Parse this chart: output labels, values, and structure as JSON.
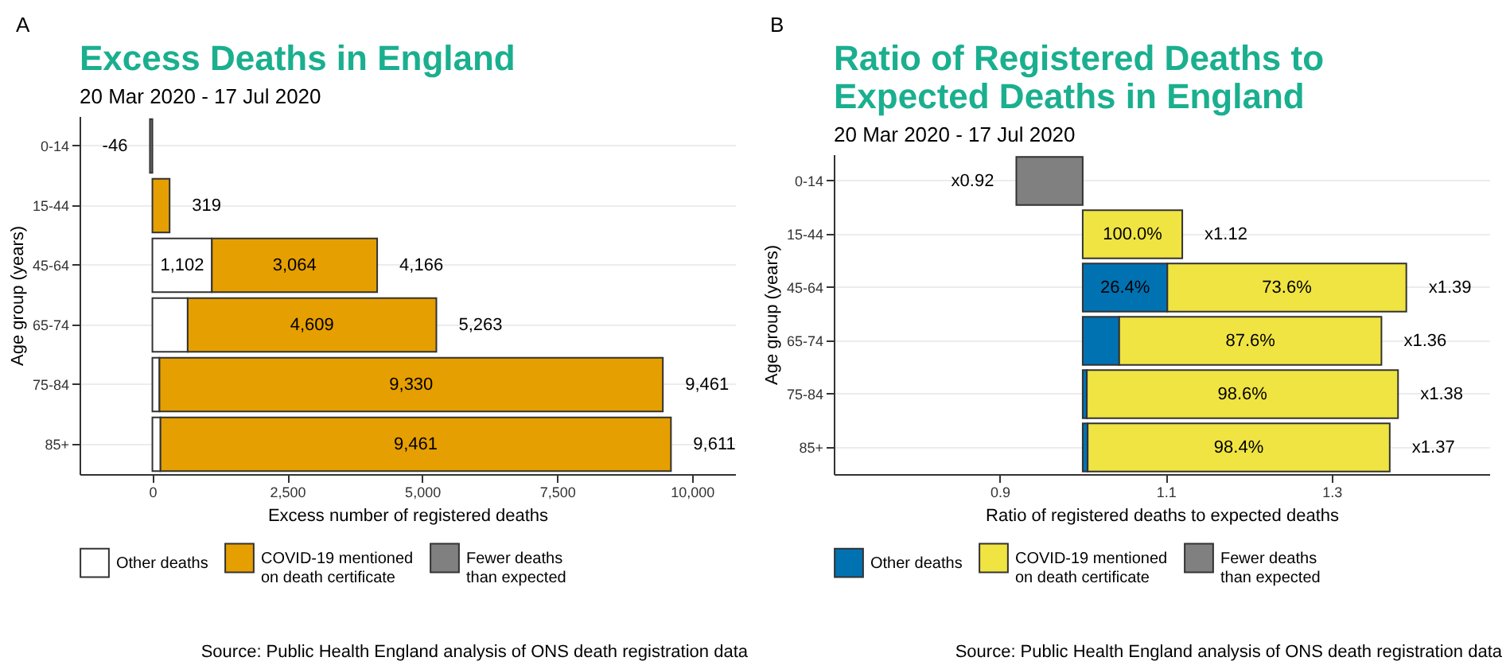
{
  "chart_data": [
    {
      "type": "bar",
      "title": "Excess Deaths in England",
      "subtitle": "20 Mar 2020 - 17 Jul 2020",
      "xlabel": "Excess number of registered deaths",
      "ylabel": "Age group (years)",
      "annotations": [
        "A",
        "Source: Public Health England analysis of ONS death registration data"
      ],
      "categories": [
        "0-14",
        "15-44",
        "45-64",
        "65-74",
        "75-84",
        "85+"
      ],
      "orientation": "horizontal",
      "stacked": true,
      "series": [
        {
          "name": "Other deaths",
          "color": "#ffffff",
          "values": [
            null,
            null,
            1102,
            654,
            131,
            150
          ],
          "value_labels": [
            null,
            null,
            "1,102",
            null,
            null,
            null
          ]
        },
        {
          "name": "COVID-19 mentioned\non death certificate",
          "color": "#e69f00",
          "values": [
            null,
            319,
            3064,
            4609,
            9330,
            9461
          ],
          "value_labels": [
            null,
            null,
            "3,064",
            "4,609",
            "9,330",
            "9,461"
          ]
        },
        {
          "name": "Fewer deaths\nthan expected",
          "color": "#808080",
          "values": [
            -46,
            null,
            null,
            null,
            null,
            null
          ]
        }
      ],
      "totals": [
        "-46",
        "319",
        "4,166",
        "5,263",
        "9,461",
        "9,611"
      ],
      "xlim": [
        -1350,
        10800
      ],
      "xticks": [
        0,
        {
          "value": 2500,
          "label": "2,500"
        },
        {
          "value": 5000,
          "label": "5,000"
        },
        {
          "value": 7500,
          "label": "7,500"
        },
        {
          "value": 10000,
          "label": "10,000"
        }
      ],
      "grid": "y",
      "legend": "bottom"
    },
    {
      "type": "bar",
      "title": "Ratio of Registered Deaths to\nExpected Deaths in England",
      "subtitle": "20 Mar 2020 - 17 Jul 2020",
      "xlabel": "Ratio of registered deaths to expected deaths",
      "ylabel": "Age group (years)",
      "annotations": [
        "B",
        "Source: Public Health England analysis of ONS death registration data",
        {
          "text": "x0.92",
          "x": 0.92,
          "y": "0-14"
        },
        {
          "text": "x1.12",
          "x": 1.12,
          "y": "15-44"
        },
        {
          "text": "x1.39",
          "x": 1.39,
          "y": "45-64"
        },
        {
          "text": "x1.36",
          "x": 1.36,
          "y": "65-74"
        },
        {
          "text": "x1.38",
          "x": 1.38,
          "y": "75-84"
        },
        {
          "text": "x1.37",
          "x": 1.37,
          "y": "85+"
        },
        {
          "text": "100.0%",
          "x": 1,
          "y": "15-44"
        },
        {
          "text": "26.4%",
          "x": 1,
          "y": "45-64"
        },
        "73.6%",
        "87.6%",
        "98.6%",
        "98.4%"
      ],
      "categories": [
        "0-14",
        "15-44",
        "45-64",
        "65-74",
        "75-84",
        "85+"
      ],
      "orientation": "horizontal",
      "series": [
        {
          "name": "Other deaths",
          "color": "#0072b2",
          "base": [
            null,
            null,
            1,
            1,
            1,
            1
          ],
          "values": [
            null,
            null,
            0.102,
            0.044,
            0.005,
            0.006
          ]
        },
        {
          "name": "COVID-19 mentioned\non death certificate",
          "color": "#f0e442",
          "base": [
            null,
            1,
            1.102,
            1.044,
            1.005,
            1.006
          ],
          "values": [
            null,
            0.12,
            0.288,
            0.316,
            0.375,
            0.364
          ]
        },
        {
          "name": "Fewer deaths\nthan expected",
          "color": "#808080",
          "base": [
            1,
            null,
            null,
            null,
            null,
            null
          ],
          "values": [
            -0.08,
            null,
            null,
            null,
            null,
            null
          ]
        }
      ],
      "xlim": [
        0.7,
        1.49
      ],
      "xticks": [
        0.9,
        1.1,
        1.3
      ],
      "grid": "y",
      "legend": "bottom"
    }
  ]
}
